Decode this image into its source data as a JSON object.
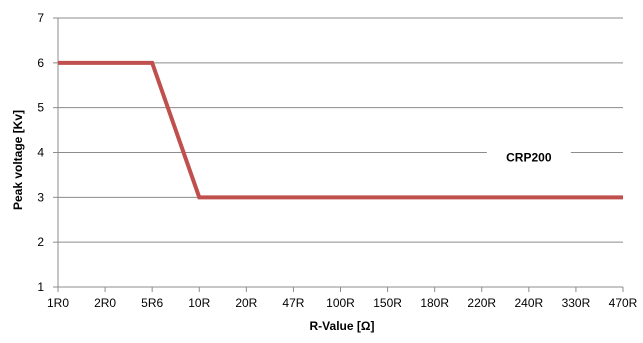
{
  "chart_data": {
    "type": "line",
    "title": "",
    "xlabel": "R-Value [Ω]",
    "ylabel": "Peak voltage [Kv]",
    "categories": [
      "1R0",
      "2R0",
      "5R6",
      "10R",
      "20R",
      "47R",
      "100R",
      "150R",
      "180R",
      "220R",
      "240R",
      "330R",
      "470R"
    ],
    "ylim": [
      1,
      7
    ],
    "yticks": [
      1,
      2,
      3,
      4,
      5,
      6,
      7
    ],
    "grid": true,
    "legend": "none",
    "series": [
      {
        "name": "CRP200",
        "color": "#c0504d",
        "values": [
          6,
          6,
          6,
          3,
          3,
          3,
          3,
          3,
          3,
          3,
          3,
          3,
          3
        ]
      }
    ],
    "annotations": [
      {
        "text": "CRP200"
      }
    ]
  }
}
